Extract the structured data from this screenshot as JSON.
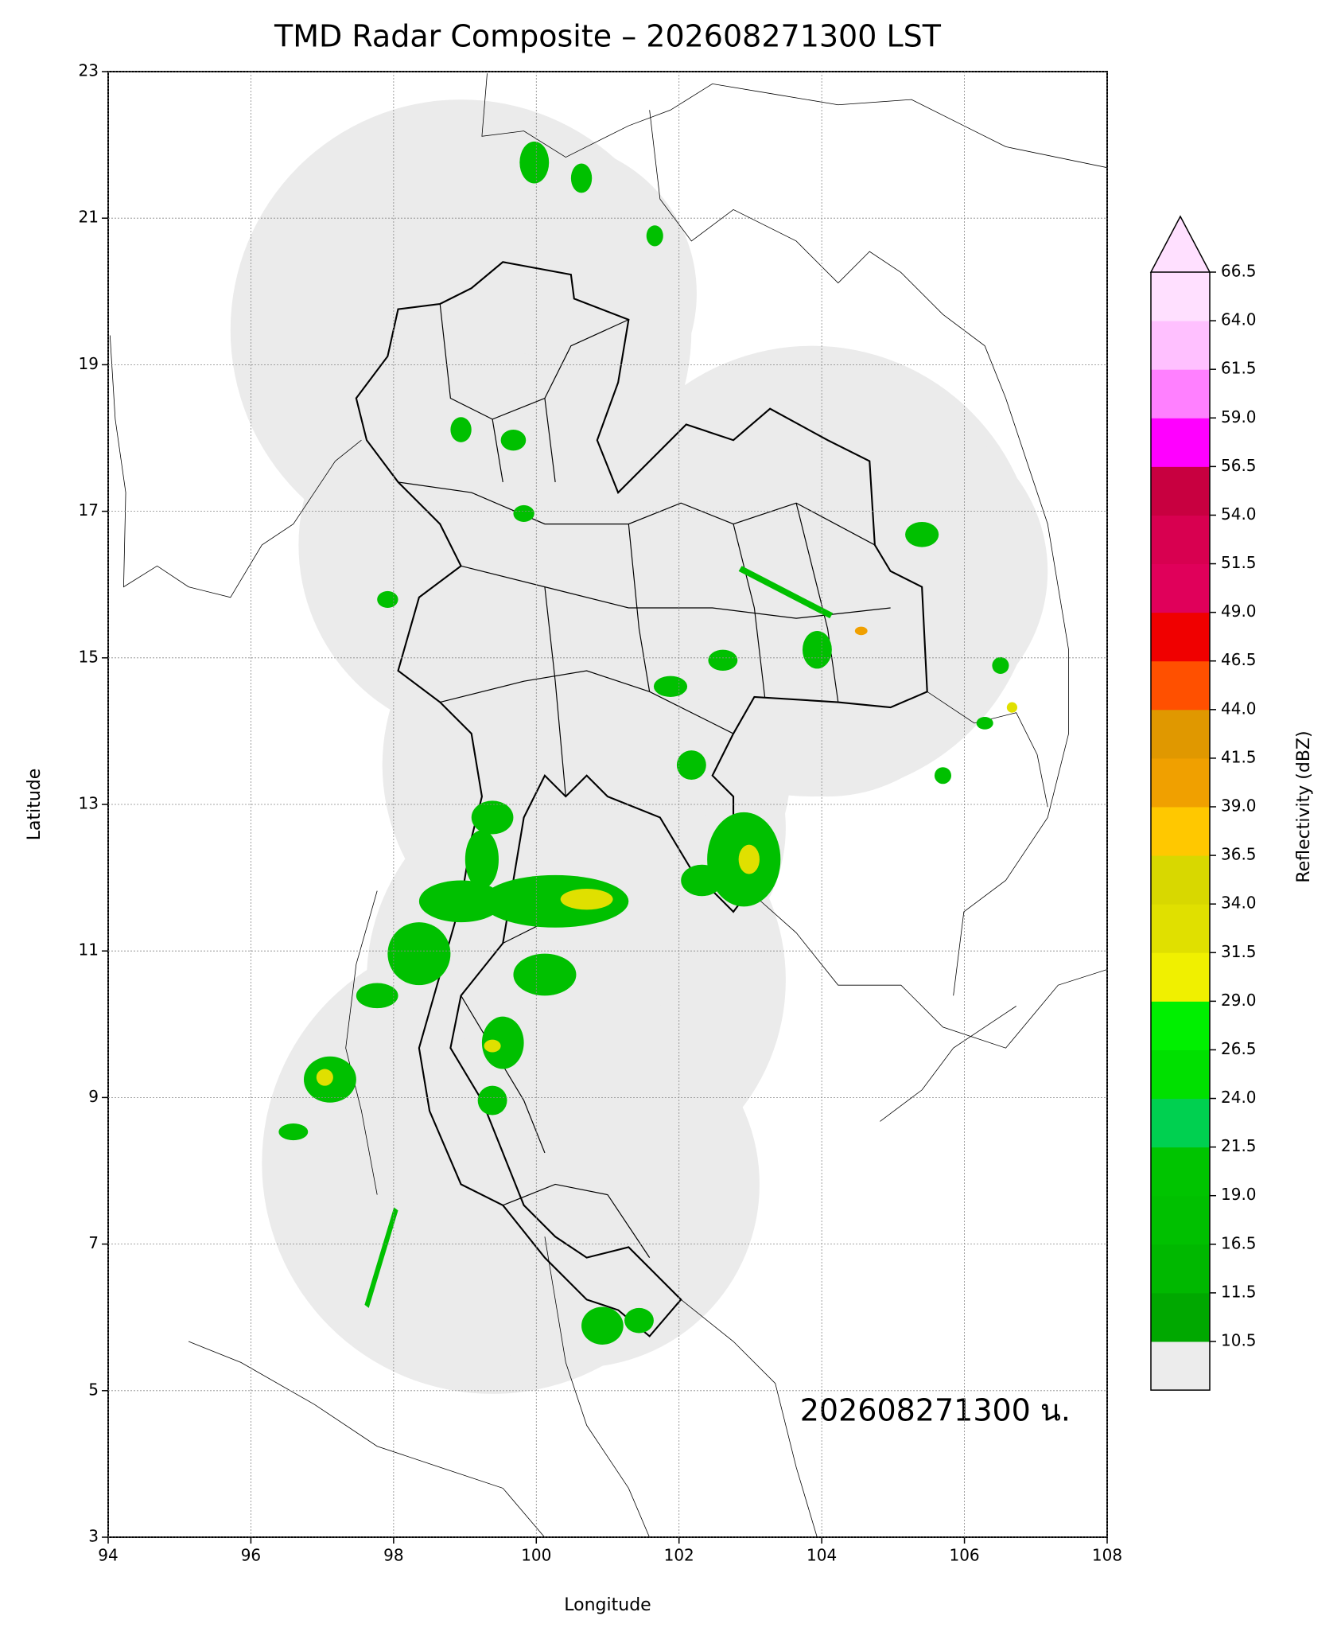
{
  "chart_data": {
    "type": "map",
    "title": "TMD Radar Composite – 202608271300 LST",
    "xlabel": "Longitude",
    "ylabel": "Latitude",
    "xlim": [
      94,
      108
    ],
    "ylim": [
      3,
      23
    ],
    "xticks": [
      94,
      96,
      98,
      100,
      102,
      104,
      106,
      108
    ],
    "yticks": [
      3,
      5,
      7,
      9,
      11,
      13,
      15,
      17,
      19,
      21,
      23
    ],
    "grid": true,
    "annotation": "202608271300 น.",
    "colorbar": {
      "label": "Reflectivity (dBZ)",
      "ticks": [
        10.5,
        11.5,
        16.5,
        {
          "value": 19,
          "label": "19.0"
        },
        21.5,
        {
          "value": 24,
          "label": "24.0"
        },
        26.5,
        {
          "value": 29,
          "label": "29.0"
        },
        31.5,
        {
          "value": 34,
          "label": "34.0"
        },
        36.5,
        {
          "value": 39,
          "label": "39.0"
        },
        41.5,
        {
          "value": 44,
          "label": "44.0"
        },
        46.5,
        {
          "value": 49,
          "label": "49.0"
        },
        51.5,
        {
          "value": 54,
          "label": "54.0"
        },
        56.5,
        {
          "value": 59,
          "label": "59.0"
        },
        61.5,
        {
          "value": 64,
          "label": "64.0"
        },
        66.5
      ],
      "colors": [
        "#00a800",
        "#00b800",
        "#00c000",
        "#00c400",
        "#00d050",
        "#00e000",
        "#00f000",
        "#f0f000",
        "#e0e000",
        "#d8d800",
        "#ffc800",
        "#f0a000",
        "#e09800",
        "#ff5000",
        "#f00000",
        "#e0005a",
        "#d80050",
        "#c80040",
        "#ff00ff",
        "#ff80ff",
        "#ffc0ff",
        "#ffe0ff"
      ],
      "under_color": "#ececec",
      "over_color": "#ffe0ff"
    }
  }
}
